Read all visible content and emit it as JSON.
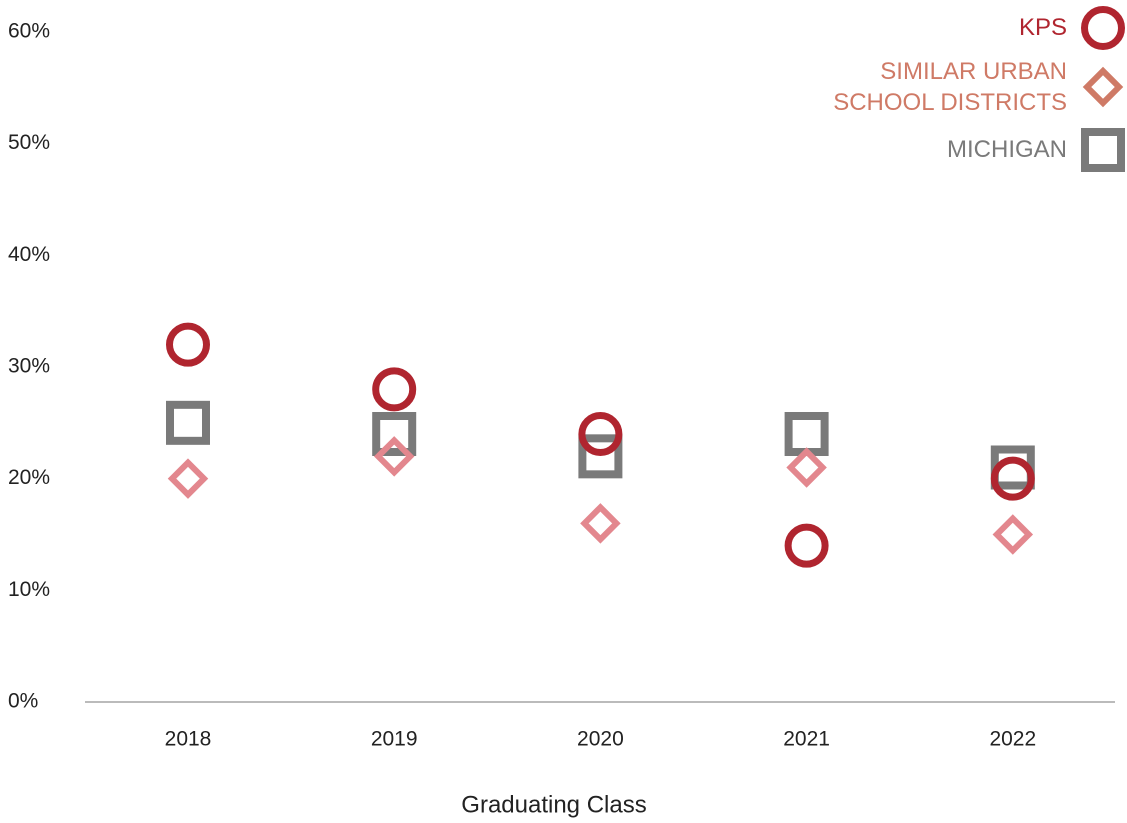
{
  "chart_data": {
    "type": "dot",
    "x_label": "Graduating Class",
    "categories": [
      "2018",
      "2019",
      "2020",
      "2021",
      "2022"
    ],
    "series": [
      {
        "name": "KPS",
        "color": "#b0252f",
        "marker": "circle",
        "values": [
          32,
          28,
          24,
          14,
          20
        ]
      },
      {
        "name": "SIMILAR URBAN SCHOOL DISTRICTS",
        "color": "#e3878e",
        "marker": "diamond",
        "values": [
          20,
          22,
          16,
          21,
          15
        ]
      },
      {
        "name": "MICHIGAN",
        "color": "#7a7a7a",
        "marker": "square",
        "values": [
          25,
          24,
          22,
          24,
          21
        ]
      }
    ],
    "ylim": [
      0,
      60
    ],
    "yticks": [
      {
        "value": 0,
        "label": "0%"
      },
      {
        "value": 10,
        "label": "10%"
      },
      {
        "value": 20,
        "label": "20%"
      },
      {
        "value": 30,
        "label": "30%"
      },
      {
        "value": 40,
        "label": "40%"
      },
      {
        "value": 50,
        "label": "50%"
      },
      {
        "value": 60,
        "label": "60%"
      }
    ],
    "legend": "top-right",
    "grid": false
  }
}
